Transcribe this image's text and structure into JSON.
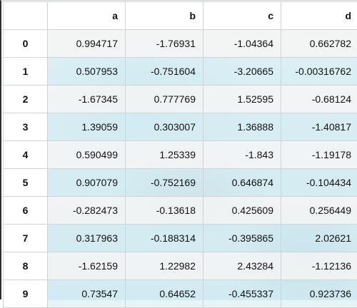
{
  "table": {
    "columns": [
      "",
      "a",
      "b",
      "c",
      "d"
    ],
    "rows": [
      {
        "index": "0",
        "a": "0.994717",
        "b": "-1.76931",
        "c": "-1.04364",
        "d": "0.662782"
      },
      {
        "index": "1",
        "a": "0.507953",
        "b": "-0.751604",
        "c": "-3.20665",
        "d": "-0.00316762"
      },
      {
        "index": "2",
        "a": "-1.67345",
        "b": "0.777769",
        "c": "1.52595",
        "d": "-0.68124"
      },
      {
        "index": "3",
        "a": "1.39059",
        "b": "0.303007",
        "c": "1.36888",
        "d": "-1.40817"
      },
      {
        "index": "4",
        "a": "0.590499",
        "b": "1.25339",
        "c": "-1.843",
        "d": "-1.19178"
      },
      {
        "index": "5",
        "a": "0.907079",
        "b": "-0.752169",
        "c": "0.646874",
        "d": "-0.104434"
      },
      {
        "index": "6",
        "a": "-0.282473",
        "b": "-0.13618",
        "c": "0.425609",
        "d": "0.256449"
      },
      {
        "index": "7",
        "a": "0.317963",
        "b": "-0.188314",
        "c": "-0.395865",
        "d": "2.02621"
      },
      {
        "index": "8",
        "a": "-1.62159",
        "b": "1.22982",
        "c": "2.43284",
        "d": "-1.12136"
      },
      {
        "index": "9",
        "a": "0.73547",
        "b": "0.64652",
        "c": "-0.455337",
        "d": "0.923736"
      }
    ]
  }
}
